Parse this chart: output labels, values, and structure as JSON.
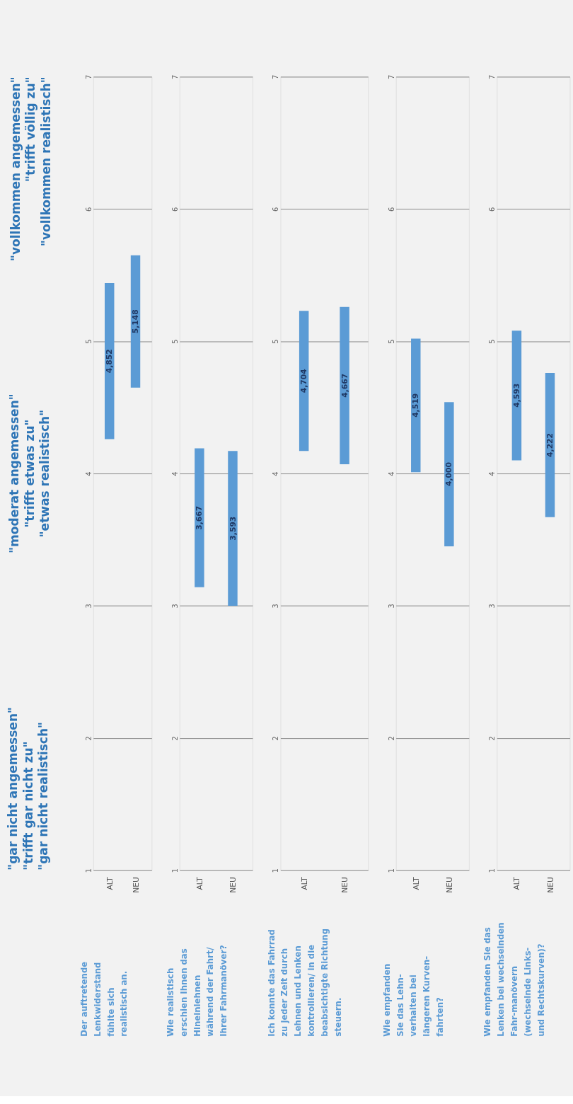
{
  "chart_data": [
    {
      "type": "other",
      "annotations": [
        "\"gar nicht angemessen\"\n\"trifft gar nicht zu\"\n\"gar nicht realistisch\"",
        "\"moderat angemessen\"\n\"trifft etwas zu\"\n\"etwas realistisch\"",
        "\"vollkommen angemessen\"\n\"trifft völlig zu\"\n\"vollkommen realistisch\""
      ]
    },
    {
      "type": "bar",
      "categories": [
        "ALT",
        "NEU"
      ],
      "base": [
        4.26,
        4.65
      ],
      "values": [
        1.18,
        1.0
      ],
      "color": "#5b9bd5",
      "ylim": [
        1,
        7
      ],
      "yticks": [
        1,
        2,
        3,
        4,
        5,
        6,
        7
      ],
      "grid": "y",
      "annotations": [
        "Der auftretende\nLenkwiderstand\nfühlte sich\nrealistisch an.",
        "4,852",
        "5,148"
      ]
    },
    {
      "type": "bar",
      "categories": [
        "ALT",
        "NEU"
      ],
      "base": [
        3.14,
        3.0
      ],
      "values": [
        1.05,
        1.17
      ],
      "color": "#5b9bd5",
      "ylim": [
        1,
        7
      ],
      "yticks": [
        1,
        2,
        3,
        4,
        5,
        6,
        7
      ],
      "grid": "y",
      "annotations": [
        "Wie realistisch\nerschien Ihnen das\nHineinlehnen\nwährend der Fahrt/\nIhrer Fahrmanöver?",
        "3,667",
        "3,593"
      ]
    },
    {
      "type": "bar",
      "categories": [
        "ALT",
        "NEU"
      ],
      "base": [
        4.17,
        4.07
      ],
      "values": [
        1.06,
        1.19
      ],
      "color": "#5b9bd5",
      "ylim": [
        1,
        7
      ],
      "yticks": [
        1,
        2,
        3,
        4,
        5,
        6,
        7
      ],
      "grid": "y",
      "annotations": [
        "Ich konnte das Fahrrad\nzu jeder Zeit durch\nLehnen und Lenken\nkontrollieren/ in die\nbeabsichtigte Richtung\nsteuern.",
        "4,704",
        "4,667"
      ]
    },
    {
      "type": "bar",
      "categories": [
        "ALT",
        "NEU"
      ],
      "base": [
        4.01,
        3.45
      ],
      "values": [
        1.01,
        1.09
      ],
      "color": "#5b9bd5",
      "ylim": [
        1,
        7
      ],
      "yticks": [
        1,
        2,
        3,
        4,
        5,
        6,
        7
      ],
      "grid": "y",
      "annotations": [
        "Wie empfanden\nSie das Lehn-\nverhalten bei\nlängeren Kurven-\nfahrten?",
        "4,519",
        "4,000"
      ]
    },
    {
      "type": "bar",
      "categories": [
        "ALT",
        "NEU"
      ],
      "base": [
        4.1,
        3.67
      ],
      "values": [
        0.98,
        1.09
      ],
      "color": "#5b9bd5",
      "ylim": [
        1,
        7
      ],
      "yticks": [
        1,
        2,
        3,
        4,
        5,
        6,
        7
      ],
      "grid": "y",
      "annotations": [
        "Wie empfanden Sie das\nLenken bei wechselnden\nFahr-manövern\n(wechselnde Links-\nund Rechtskurven)?",
        "4,593",
        "4,222"
      ]
    }
  ]
}
